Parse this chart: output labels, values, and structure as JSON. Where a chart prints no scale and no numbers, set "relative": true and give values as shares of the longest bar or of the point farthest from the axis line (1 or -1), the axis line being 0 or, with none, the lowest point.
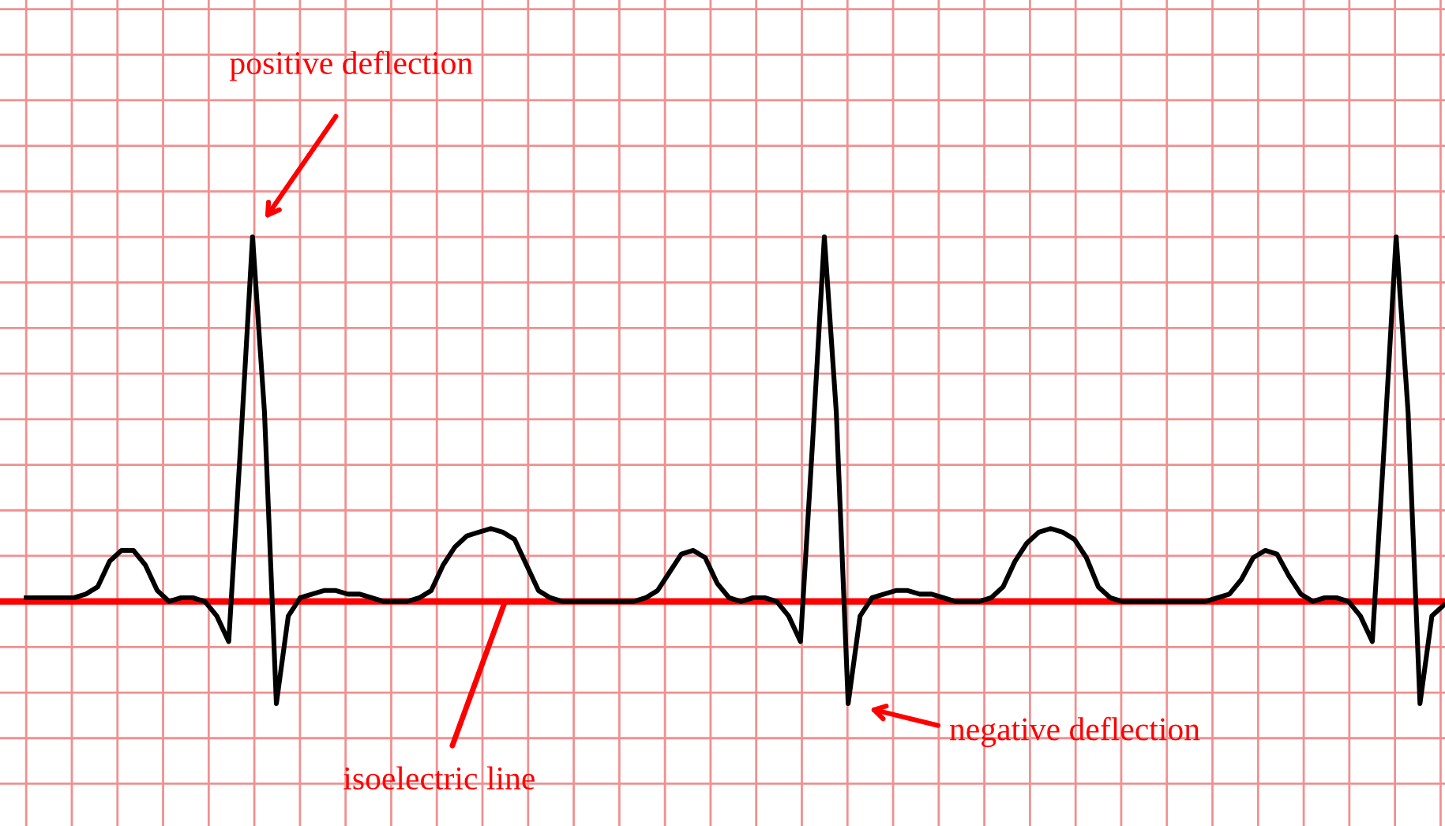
{
  "chart_data": {
    "type": "line",
    "relative": true,
    "grid": true,
    "legend": false,
    "categories": [
      null,
      null,
      null,
      null,
      null,
      null,
      null,
      null,
      null,
      null,
      null,
      null,
      null,
      null,
      null,
      null,
      null,
      null,
      null,
      null,
      null,
      null,
      null,
      null,
      null,
      null,
      null,
      null,
      null,
      null,
      null,
      null,
      null,
      null,
      null,
      null,
      null,
      null,
      null,
      null,
      null,
      null,
      null,
      null,
      null,
      null,
      null,
      null,
      null,
      null,
      null,
      null,
      null,
      null,
      null,
      null,
      null,
      null,
      null,
      null,
      null,
      null,
      null,
      null,
      null,
      null,
      null,
      null,
      null,
      null,
      null,
      null,
      null,
      null,
      null,
      null,
      null,
      null,
      null,
      null,
      null,
      null,
      null,
      null,
      null,
      null,
      null,
      null,
      null,
      null,
      null,
      null,
      null,
      null,
      null,
      null,
      null,
      null,
      null,
      null,
      null,
      null,
      null,
      null,
      null,
      null,
      null,
      null,
      null,
      null,
      null,
      null,
      null,
      null,
      null,
      null,
      null,
      null,
      null,
      null
    ],
    "series": [
      {
        "color": "#000000",
        "values": [
          0.01,
          0.01,
          0.01,
          0.01,
          0.01,
          0.02,
          0.04,
          0.11,
          0.14,
          0.14,
          0.1,
          0.03,
          0,
          0.01,
          0.01,
          0,
          -0.04,
          -0.11,
          0.43,
          1,
          0.52,
          -0.28,
          -0.04,
          0.01,
          0.02,
          0.03,
          0.03,
          0.02,
          0.02,
          0.01,
          0,
          0,
          0,
          0.01,
          0.03,
          0.1,
          0.15,
          0.18,
          0.19,
          0.2,
          0.19,
          0.17,
          0.1,
          0.03,
          0.01,
          0,
          0,
          0,
          0,
          0,
          0,
          0,
          0.01,
          0.03,
          0.08,
          0.13,
          0.14,
          0.12,
          0.05,
          0.01,
          0,
          0.01,
          0.01,
          0,
          -0.04,
          -0.11,
          0.43,
          1,
          0.52,
          -0.28,
          -0.04,
          0.01,
          0.02,
          0.03,
          0.03,
          0.02,
          0.02,
          0.01,
          0,
          0,
          0,
          0.01,
          0.04,
          0.11,
          0.16,
          0.19,
          0.2,
          0.19,
          0.17,
          0.12,
          0.04,
          0.01,
          0,
          0,
          0,
          0,
          0,
          0,
          0,
          0,
          0.01,
          0.02,
          0.06,
          0.12,
          0.14,
          0.13,
          0.07,
          0.02,
          0,
          0.01,
          0.01,
          0,
          -0.04,
          -0.11,
          0.43,
          1,
          0.52,
          -0.28,
          -0.04,
          -0.01
        ]
      }
    ],
    "ref_lines": [
      {
        "axis": "y",
        "value": 0,
        "label": "isoelectric line",
        "color": "#ff0000"
      }
    ],
    "annotations": [
      "positive deflection",
      "negative deflection"
    ]
  }
}
